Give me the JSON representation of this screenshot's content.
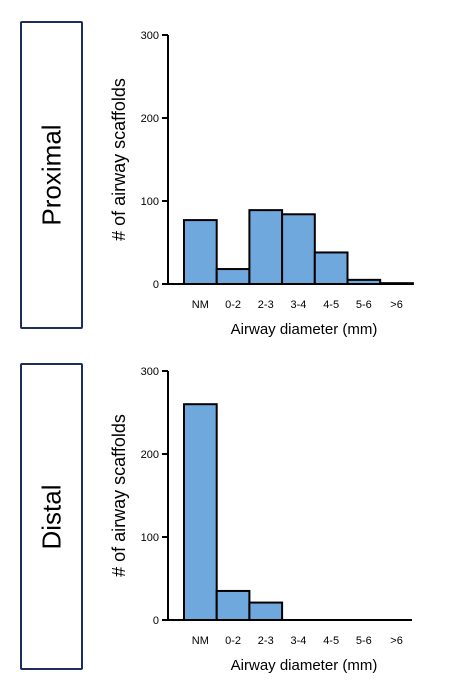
{
  "panels": [
    {
      "label": "Proximal"
    },
    {
      "label": "Distal"
    }
  ],
  "chart_data": [
    {
      "type": "bar",
      "panel": "Proximal",
      "categories": [
        "NM",
        "0-2",
        "2-3",
        "3-4",
        "4-5",
        "5-6",
        ">6"
      ],
      "values": [
        77,
        18,
        89,
        84,
        38,
        5,
        1
      ],
      "xlabel": "Airway diameter (mm)",
      "ylabel": "# of airway scaffolds",
      "ylim": [
        0,
        300
      ],
      "yticks": [
        0,
        100,
        200,
        300
      ],
      "bar_color": "#6fa8dc",
      "grid": false
    },
    {
      "type": "bar",
      "panel": "Distal",
      "categories": [
        "NM",
        "0-2",
        "2-3",
        "3-4",
        "4-5",
        "5-6",
        ">6"
      ],
      "values": [
        260,
        35,
        21,
        0,
        0,
        0,
        0
      ],
      "xlabel": "Airway diameter (mm)",
      "ylabel": "# of airway scaffolds",
      "ylim": [
        0,
        300
      ],
      "yticks": [
        0,
        100,
        200,
        300
      ],
      "bar_color": "#6fa8dc",
      "grid": false
    }
  ]
}
